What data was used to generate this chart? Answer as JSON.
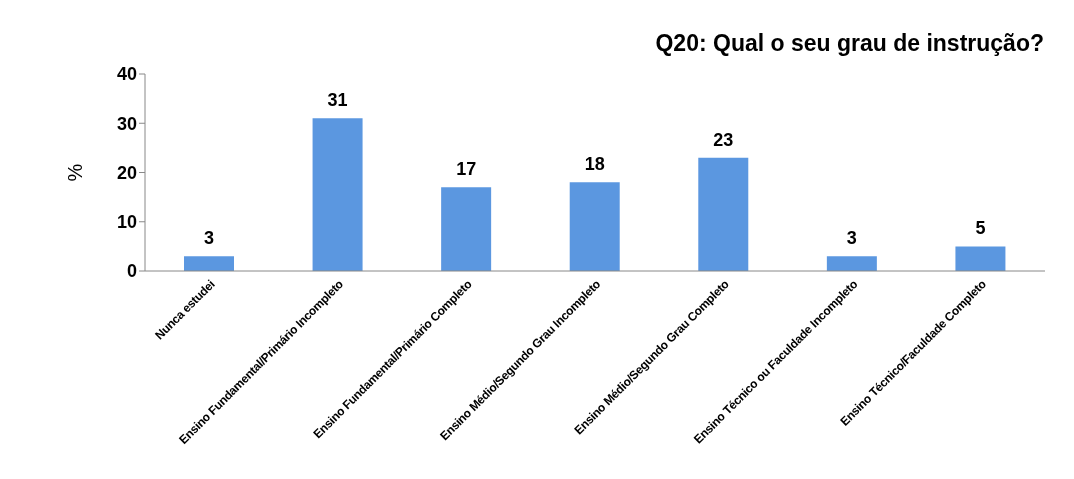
{
  "chart_data": {
    "type": "bar",
    "title": "Q20: Qual o seu grau de instrução?",
    "ylabel": "%",
    "categories": [
      "Nunca estudei",
      "Ensino Fundamental/Primário Incompleto",
      "Ensino Fundamental/Primário Completo",
      "Ensino Médio/Segundo Grau Incompleto",
      "Ensino Médio/Segundo Grau Completo",
      "Ensino Técnico ou Faculdade Incompleto",
      "Ensino Técnico/Faculdade Completo"
    ],
    "values": [
      3,
      31,
      17,
      18,
      23,
      3,
      5
    ],
    "color": "#5b97e0",
    "ylim": [
      0,
      40
    ],
    "yticks": [
      0,
      10,
      20,
      30,
      40
    ],
    "grid": false,
    "data_labels": true
  }
}
